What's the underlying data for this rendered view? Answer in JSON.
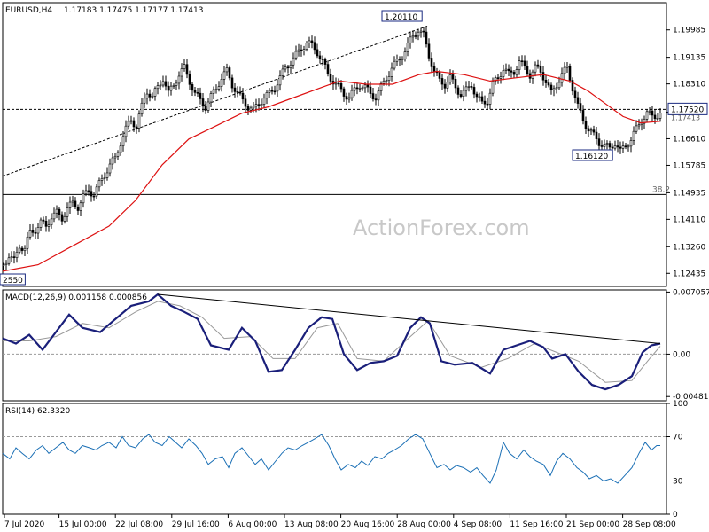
{
  "chart_data": [
    {
      "type": "candlestick",
      "title": "EURUSD,H4",
      "ohlc_label": "1.17183 1.17475 1.17177 1.17413",
      "ylim": [
        1.1203,
        1.2083
      ],
      "y_ticks": [
        1.12435,
        1.1326,
        1.1411,
        1.14935,
        1.15785,
        1.1661,
        1.17435,
        1.1831,
        1.19135,
        1.19985
      ],
      "y_tick_labels": [
        "1.12435",
        "1.13260",
        "1.14110",
        "1.14935",
        "1.15785",
        "1.16610",
        "1.17435",
        "1.18310",
        "1.19135",
        "1.19985"
      ],
      "current_price": 1.1752,
      "current_price_label": "1.17520",
      "hidden_tick_label": "1.17413",
      "fib_level": 1.1488,
      "fib_label": "38.2",
      "annotations": [
        {
          "label": "1.20110",
          "value": 1.2011
        },
        {
          "label": "1.16120",
          "value": 1.1612
        },
        {
          "label": "2550",
          "value": 1.1255
        }
      ],
      "close_path": [
        [
          0,
          1.127
        ],
        [
          6,
          1.13
        ],
        [
          12,
          1.128
        ],
        [
          18,
          1.133
        ],
        [
          24,
          1.132
        ],
        [
          30,
          1.137
        ],
        [
          36,
          1.138
        ],
        [
          42,
          1.14
        ],
        [
          48,
          1.139
        ],
        [
          54,
          1.142
        ],
        [
          60,
          1.143
        ],
        [
          66,
          1.1415
        ],
        [
          72,
          1.1445
        ],
        [
          78,
          1.146
        ],
        [
          84,
          1.145
        ],
        [
          90,
          1.148
        ],
        [
          96,
          1.15
        ],
        [
          102,
          1.149
        ],
        [
          108,
          1.152
        ],
        [
          114,
          1.155
        ],
        [
          120,
          1.158
        ],
        [
          126,
          1.16
        ],
        [
          132,
          1.165
        ],
        [
          138,
          1.169
        ],
        [
          144,
          1.172
        ],
        [
          150,
          1.17
        ],
        [
          156,
          1.176
        ],
        [
          162,
          1.181
        ],
        [
          168,
          1.179
        ],
        [
          174,
          1.182
        ],
        [
          180,
          1.185
        ],
        [
          186,
          1.18
        ],
        [
          192,
          1.183
        ],
        [
          198,
          1.186
        ],
        [
          204,
          1.188
        ],
        [
          210,
          1.184
        ],
        [
          216,
          1.18
        ],
        [
          222,
          1.178
        ],
        [
          228,
          1.176
        ],
        [
          234,
          1.179
        ],
        [
          240,
          1.182
        ],
        [
          246,
          1.185
        ],
        [
          252,
          1.187
        ],
        [
          258,
          1.183
        ],
        [
          264,
          1.18
        ],
        [
          270,
          1.178
        ],
        [
          276,
          1.176
        ],
        [
          282,
          1.175
        ],
        [
          288,
          1.177
        ],
        [
          294,
          1.179
        ],
        [
          300,
          1.18
        ],
        [
          306,
          1.182
        ],
        [
          312,
          1.185
        ],
        [
          318,
          1.188
        ],
        [
          324,
          1.19
        ],
        [
          330,
          1.192
        ],
        [
          336,
          1.194
        ],
        [
          342,
          1.196
        ],
        [
          348,
          1.195
        ],
        [
          354,
          1.193
        ],
        [
          360,
          1.19
        ],
        [
          366,
          1.186
        ],
        [
          372,
          1.184
        ],
        [
          378,
          1.182
        ],
        [
          384,
          1.18
        ],
        [
          390,
          1.179
        ],
        [
          396,
          1.181
        ],
        [
          402,
          1.183
        ],
        [
          408,
          1.182
        ],
        [
          414,
          1.18
        ],
        [
          420,
          1.179
        ],
        [
          426,
          1.182
        ],
        [
          432,
          1.185
        ],
        [
          438,
          1.188
        ],
        [
          444,
          1.19
        ],
        [
          450,
          1.192
        ],
        [
          456,
          1.195
        ],
        [
          462,
          1.198
        ],
        [
          468,
          1.2
        ],
        [
          474,
          1.198
        ],
        [
          480,
          1.192
        ],
        [
          486,
          1.187
        ],
        [
          492,
          1.184
        ],
        [
          498,
          1.183
        ],
        [
          504,
          1.185
        ],
        [
          510,
          1.182
        ],
        [
          516,
          1.18
        ],
        [
          522,
          1.181
        ],
        [
          528,
          1.183
        ],
        [
          534,
          1.179
        ],
        [
          540,
          1.177
        ],
        [
          546,
          1.178
        ],
        [
          552,
          1.183
        ],
        [
          558,
          1.185
        ],
        [
          564,
          1.188
        ],
        [
          570,
          1.186
        ],
        [
          576,
          1.187
        ],
        [
          582,
          1.19
        ],
        [
          588,
          1.188
        ],
        [
          594,
          1.186
        ],
        [
          600,
          1.188
        ],
        [
          606,
          1.187
        ],
        [
          612,
          1.184
        ],
        [
          618,
          1.18
        ],
        [
          624,
          1.183
        ],
        [
          630,
          1.186
        ],
        [
          636,
          1.188
        ],
        [
          642,
          1.182
        ],
        [
          648,
          1.176
        ],
        [
          654,
          1.172
        ],
        [
          660,
          1.169
        ],
        [
          666,
          1.167
        ],
        [
          672,
          1.165
        ],
        [
          678,
          1.164
        ],
        [
          684,
          1.163
        ],
        [
          690,
          1.165
        ],
        [
          696,
          1.162
        ],
        [
          702,
          1.164
        ],
        [
          708,
          1.166
        ],
        [
          714,
          1.169
        ],
        [
          720,
          1.172
        ],
        [
          726,
          1.174
        ],
        [
          732,
          1.173
        ],
        [
          738,
          1.1735
        ],
        [
          742,
          1.1741
        ]
      ],
      "ma_path": [
        [
          0,
          1.125
        ],
        [
          40,
          1.127
        ],
        [
          80,
          1.133
        ],
        [
          120,
          1.139
        ],
        [
          150,
          1.147
        ],
        [
          180,
          1.158
        ],
        [
          210,
          1.166
        ],
        [
          240,
          1.17
        ],
        [
          270,
          1.174
        ],
        [
          300,
          1.176
        ],
        [
          330,
          1.179
        ],
        [
          360,
          1.182
        ],
        [
          380,
          1.184
        ],
        [
          410,
          1.183
        ],
        [
          440,
          1.183
        ],
        [
          470,
          1.186
        ],
        [
          490,
          1.187
        ],
        [
          520,
          1.186
        ],
        [
          550,
          1.184
        ],
        [
          580,
          1.185
        ],
        [
          610,
          1.186
        ],
        [
          640,
          1.184
        ],
        [
          660,
          1.181
        ],
        [
          680,
          1.177
        ],
        [
          700,
          1.173
        ],
        [
          720,
          1.171
        ],
        [
          742,
          1.1715
        ]
      ],
      "trendline": [
        [
          0,
          1.1545
        ],
        [
          480,
          1.2011
        ]
      ]
    },
    {
      "type": "line",
      "title": "MACD(12,26,9) 0.001158 0.000856",
      "ylim": [
        -0.0053,
        0.0073
      ],
      "y_ticks": [
        0.007057,
        0.0,
        -0.004818
      ],
      "y_tick_labels": [
        "0.007057",
        "0.00",
        "-0.004818"
      ],
      "reference_line": 0.0,
      "macd_path": [
        [
          0,
          0.0018
        ],
        [
          15,
          0.0012
        ],
        [
          30,
          0.0022
        ],
        [
          45,
          0.0005
        ],
        [
          60,
          0.0025
        ],
        [
          75,
          0.0045
        ],
        [
          90,
          0.003
        ],
        [
          110,
          0.0025
        ],
        [
          125,
          0.0038
        ],
        [
          145,
          0.0055
        ],
        [
          165,
          0.006
        ],
        [
          175,
          0.0068
        ],
        [
          190,
          0.0055
        ],
        [
          205,
          0.0048
        ],
        [
          220,
          0.004
        ],
        [
          235,
          0.001
        ],
        [
          255,
          0.0005
        ],
        [
          270,
          0.003
        ],
        [
          285,
          0.0015
        ],
        [
          300,
          -0.002
        ],
        [
          315,
          -0.0018
        ],
        [
          330,
          0.0005
        ],
        [
          345,
          0.003
        ],
        [
          360,
          0.0042
        ],
        [
          372,
          0.004
        ],
        [
          385,
          0.0
        ],
        [
          400,
          -0.0018
        ],
        [
          415,
          -0.001
        ],
        [
          430,
          -0.0008
        ],
        [
          445,
          -0.0002
        ],
        [
          460,
          0.003
        ],
        [
          472,
          0.0042
        ],
        [
          482,
          0.0035
        ],
        [
          495,
          -0.0008
        ],
        [
          510,
          -0.0012
        ],
        [
          530,
          -0.001
        ],
        [
          550,
          -0.0022
        ],
        [
          565,
          0.0005
        ],
        [
          580,
          0.001
        ],
        [
          595,
          0.0015
        ],
        [
          610,
          0.0008
        ],
        [
          620,
          -0.0005
        ],
        [
          635,
          0.0
        ],
        [
          650,
          -0.002
        ],
        [
          665,
          -0.0035
        ],
        [
          680,
          -0.004
        ],
        [
          695,
          -0.0035
        ],
        [
          710,
          -0.0025
        ],
        [
          722,
          0.0002
        ],
        [
          732,
          0.001
        ],
        [
          742,
          0.0012
        ]
      ],
      "signal_path": [
        [
          0,
          0.0015
        ],
        [
          30,
          0.0015
        ],
        [
          60,
          0.002
        ],
        [
          90,
          0.0035
        ],
        [
          120,
          0.003
        ],
        [
          150,
          0.0048
        ],
        [
          175,
          0.006
        ],
        [
          200,
          0.0055
        ],
        [
          225,
          0.0042
        ],
        [
          250,
          0.0018
        ],
        [
          280,
          0.002
        ],
        [
          305,
          -0.0005
        ],
        [
          330,
          -0.0005
        ],
        [
          355,
          0.003
        ],
        [
          378,
          0.0035
        ],
        [
          400,
          -0.0005
        ],
        [
          430,
          -0.0008
        ],
        [
          460,
          0.002
        ],
        [
          480,
          0.0038
        ],
        [
          505,
          -0.0002
        ],
        [
          540,
          -0.0015
        ],
        [
          570,
          -0.0005
        ],
        [
          600,
          0.0012
        ],
        [
          625,
          0.0002
        ],
        [
          650,
          -0.0008
        ],
        [
          680,
          -0.0032
        ],
        [
          710,
          -0.003
        ],
        [
          730,
          -0.0005
        ],
        [
          742,
          0.0009
        ]
      ],
      "trendline": [
        [
          175,
          0.0068
        ],
        [
          742,
          0.0012
        ]
      ]
    },
    {
      "type": "line",
      "title": "RSI(14) 62.3320",
      "ylim": [
        0,
        100
      ],
      "y_ticks": [
        100,
        70,
        30,
        0
      ],
      "y_tick_labels": [
        "100",
        "70",
        "30",
        "0"
      ],
      "reference_levels": [
        70,
        30
      ],
      "rsi_path": [
        [
          0,
          55
        ],
        [
          8,
          50
        ],
        [
          15,
          60
        ],
        [
          22,
          55
        ],
        [
          30,
          50
        ],
        [
          38,
          58
        ],
        [
          45,
          62
        ],
        [
          52,
          55
        ],
        [
          60,
          60
        ],
        [
          68,
          65
        ],
        [
          75,
          58
        ],
        [
          82,
          55
        ],
        [
          90,
          62
        ],
        [
          98,
          60
        ],
        [
          105,
          58
        ],
        [
          112,
          62
        ],
        [
          120,
          65
        ],
        [
          128,
          60
        ],
        [
          135,
          70
        ],
        [
          142,
          62
        ],
        [
          150,
          60
        ],
        [
          158,
          68
        ],
        [
          165,
          72
        ],
        [
          172,
          65
        ],
        [
          180,
          62
        ],
        [
          188,
          70
        ],
        [
          195,
          65
        ],
        [
          202,
          60
        ],
        [
          210,
          68
        ],
        [
          218,
          62
        ],
        [
          225,
          55
        ],
        [
          232,
          45
        ],
        [
          240,
          50
        ],
        [
          248,
          52
        ],
        [
          255,
          42
        ],
        [
          262,
          55
        ],
        [
          270,
          60
        ],
        [
          278,
          52
        ],
        [
          285,
          45
        ],
        [
          292,
          50
        ],
        [
          300,
          40
        ],
        [
          308,
          48
        ],
        [
          315,
          55
        ],
        [
          322,
          60
        ],
        [
          330,
          58
        ],
        [
          338,
          62
        ],
        [
          345,
          65
        ],
        [
          352,
          68
        ],
        [
          360,
          72
        ],
        [
          368,
          62
        ],
        [
          375,
          50
        ],
        [
          382,
          40
        ],
        [
          390,
          45
        ],
        [
          398,
          42
        ],
        [
          405,
          48
        ],
        [
          412,
          44
        ],
        [
          420,
          52
        ],
        [
          428,
          50
        ],
        [
          435,
          55
        ],
        [
          442,
          58
        ],
        [
          450,
          62
        ],
        [
          458,
          68
        ],
        [
          466,
          72
        ],
        [
          474,
          68
        ],
        [
          482,
          55
        ],
        [
          490,
          42
        ],
        [
          498,
          45
        ],
        [
          505,
          40
        ],
        [
          512,
          44
        ],
        [
          520,
          42
        ],
        [
          528,
          38
        ],
        [
          535,
          42
        ],
        [
          542,
          35
        ],
        [
          550,
          28
        ],
        [
          557,
          40
        ],
        [
          565,
          65
        ],
        [
          572,
          55
        ],
        [
          580,
          50
        ],
        [
          588,
          58
        ],
        [
          595,
          52
        ],
        [
          602,
          48
        ],
        [
          610,
          45
        ],
        [
          618,
          35
        ],
        [
          625,
          48
        ],
        [
          632,
          55
        ],
        [
          640,
          50
        ],
        [
          648,
          42
        ],
        [
          655,
          38
        ],
        [
          662,
          32
        ],
        [
          670,
          35
        ],
        [
          678,
          30
        ],
        [
          686,
          32
        ],
        [
          694,
          28
        ],
        [
          702,
          35
        ],
        [
          710,
          42
        ],
        [
          718,
          55
        ],
        [
          725,
          65
        ],
        [
          732,
          58
        ],
        [
          738,
          62
        ],
        [
          742,
          62
        ]
      ]
    }
  ],
  "x_axis_labels": [
    "7 Jul 2020",
    "15 Jul 00:00",
    "22 Jul 08:00",
    "29 Jul 16:00",
    "6 Aug 00:00",
    "13 Aug 08:00",
    "20 Aug 16:00",
    "28 Aug 00:00",
    "4 Sep 08:00",
    "11 Sep 16:00",
    "21 Sep 00:00",
    "28 Sep 08:00"
  ],
  "watermark": "ActionForex.com",
  "colors": {
    "candle": "#000000",
    "ma": "#dd1111",
    "macd": "#1a1f7a",
    "signal": "#999999",
    "rsi": "#1a6fb5",
    "trendline": "#000000"
  }
}
